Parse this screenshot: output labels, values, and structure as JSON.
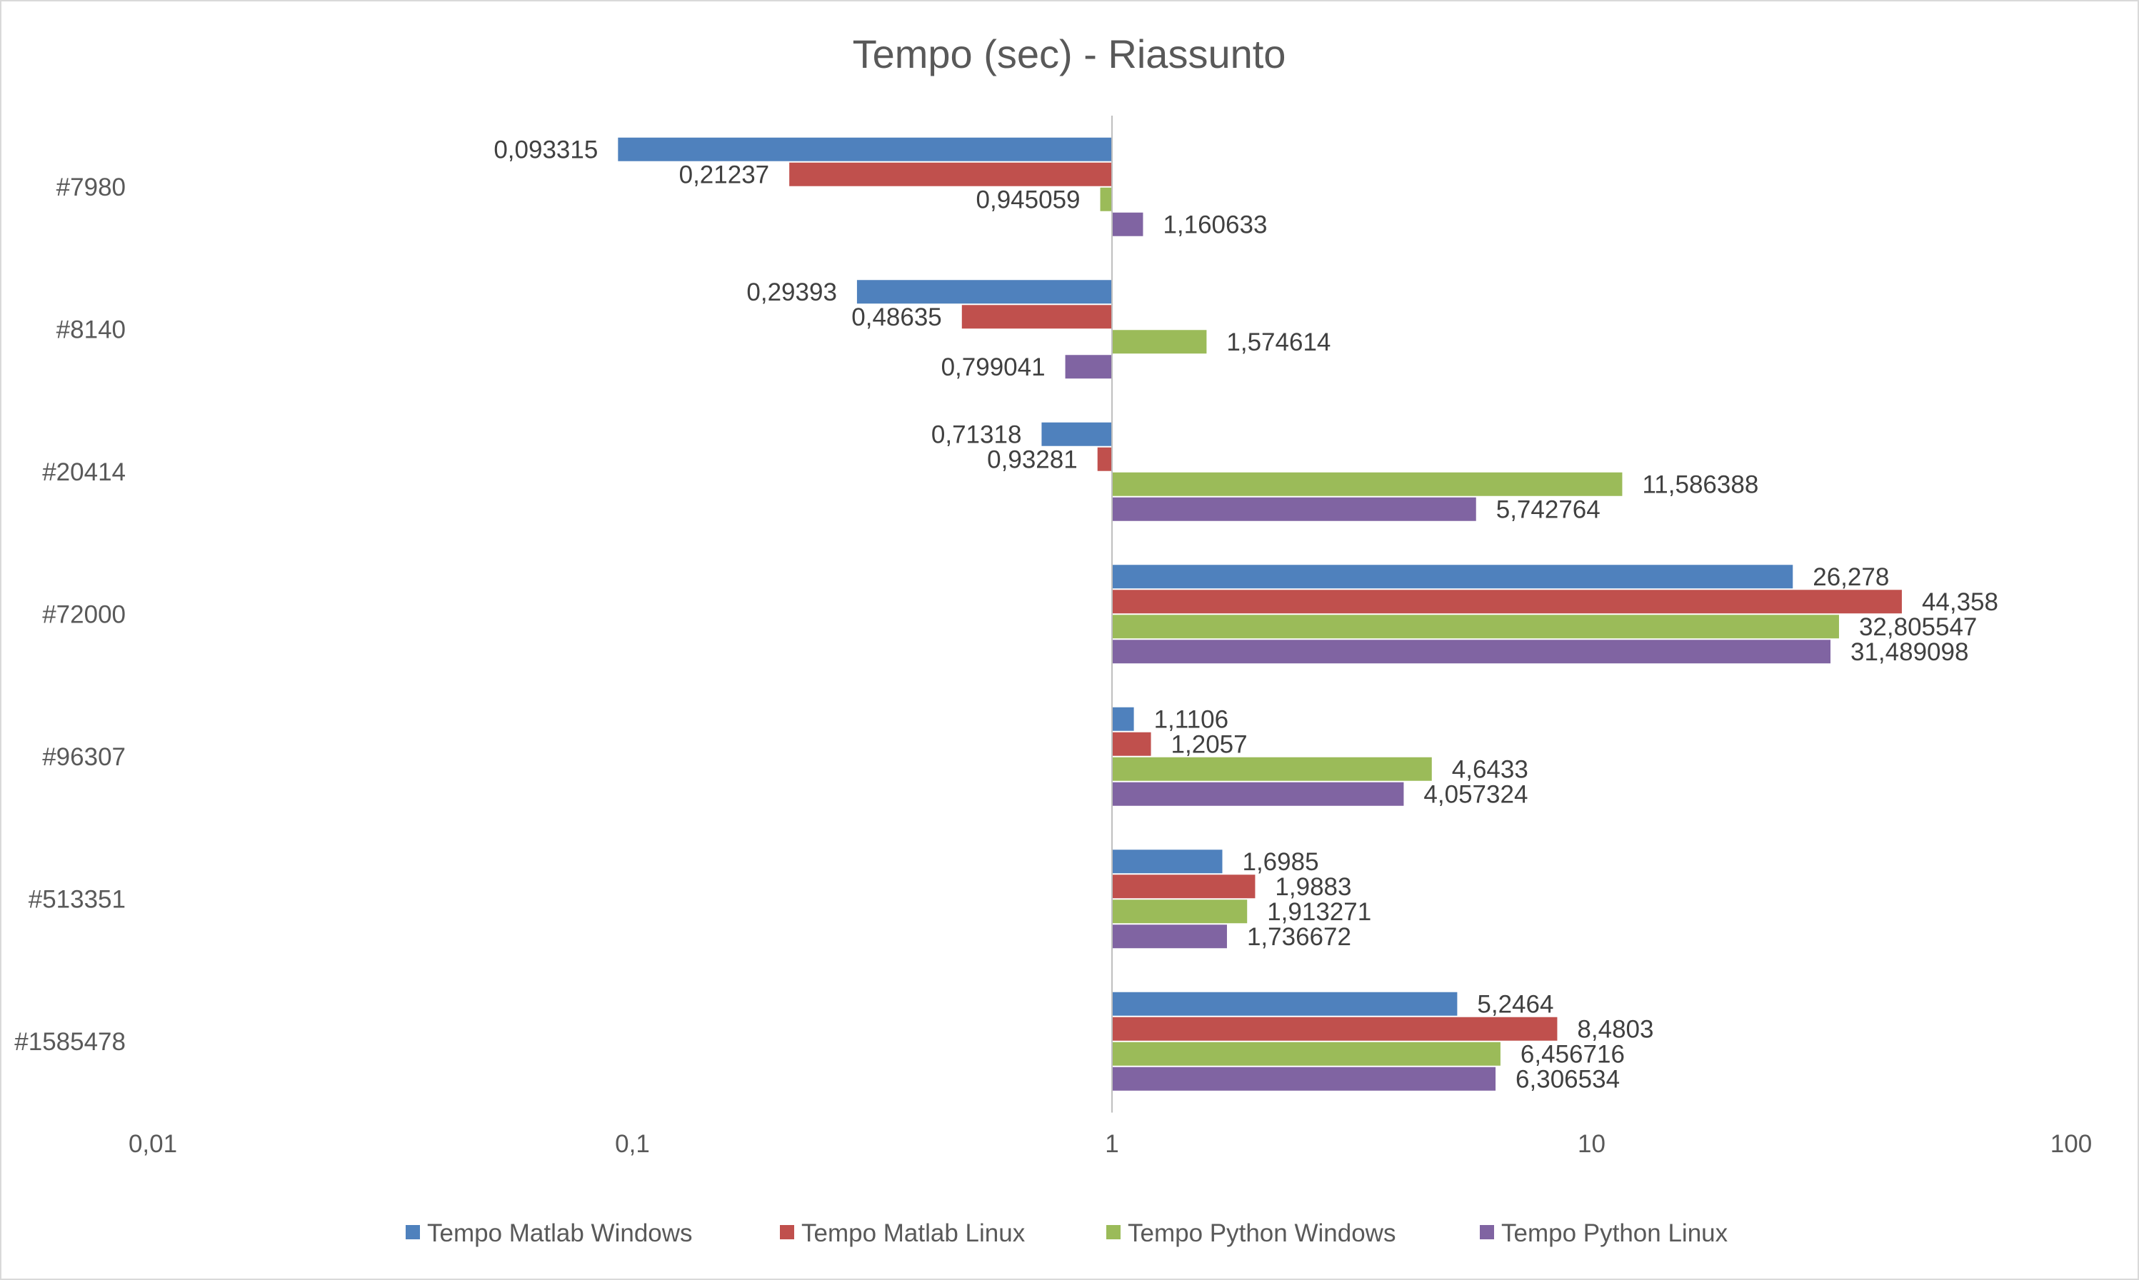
{
  "chart_data": {
    "type": "bar",
    "orientation": "horizontal",
    "title": "Tempo (sec) - Riassunto",
    "xlabel": "",
    "ylabel": "",
    "x_scale": "log",
    "xlim": [
      0.01,
      100
    ],
    "x_ticks": [
      0.01,
      0.1,
      1,
      10,
      100
    ],
    "x_tick_labels": [
      "0,01",
      "0,1",
      "1",
      "10",
      "100"
    ],
    "grid": false,
    "legend_position": "bottom",
    "categories": [
      "#7980",
      "#8140",
      "#20414",
      "#72000",
      "#96307",
      "#513351",
      "#1585478"
    ],
    "series": [
      {
        "name": "Tempo Matlab Windows",
        "color": "#4f81bd",
        "values": [
          0.093315,
          0.29393,
          0.71318,
          26.278,
          1.1106,
          1.6985,
          5.2464
        ],
        "labels": [
          "0,093315",
          "0,29393",
          "0,71318",
          "26,278",
          "1,1106",
          "1,6985",
          "5,2464"
        ]
      },
      {
        "name": "Tempo Matlab Linux",
        "color": "#c0504d",
        "values": [
          0.21237,
          0.48635,
          0.93281,
          44.358,
          1.2057,
          1.9883,
          8.4803
        ],
        "labels": [
          "0,21237",
          "0,48635",
          "0,93281",
          "44,358",
          "1,2057",
          "1,9883",
          "8,4803"
        ]
      },
      {
        "name": "Tempo Python Windows",
        "color": "#9bbb59",
        "values": [
          0.945059,
          1.574614,
          11.586388,
          32.805547,
          4.6433,
          1.913271,
          6.456716
        ],
        "labels": [
          "0,945059",
          "1,574614",
          "11,586388",
          "32,805547",
          "4,6433",
          "1,913271",
          "6,456716"
        ]
      },
      {
        "name": "Tempo Python Linux",
        "color": "#8064a2",
        "values": [
          1.160633,
          0.799041,
          5.742764,
          31.489098,
          4.057324,
          1.736672,
          6.306534
        ],
        "labels": [
          "1,160633",
          "0,799041",
          "5,742764",
          "31,489098",
          "4,057324",
          "1,736672",
          "6,306534"
        ]
      }
    ]
  }
}
